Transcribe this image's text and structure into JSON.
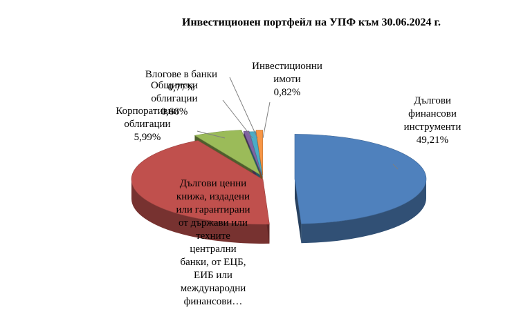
{
  "chart_data": {
    "type": "pie",
    "title": "Инвестиционен портфейл на УПФ към 30.06.2024 г.",
    "slices": [
      {
        "label": "Дългови финансови инструменти",
        "value": 49.21,
        "display": "49,21%",
        "color": "#4f81bd"
      },
      {
        "label": "Дългови ценни книжа, издадени или гарантирани от държави или техните централни банки, от ЕЦБ, ЕИБ или международни финансови…",
        "value": 42.55,
        "display": "",
        "color": "#c0504d"
      },
      {
        "label": "Корпоративни облигации",
        "value": 5.99,
        "display": "5,99%",
        "color": "#9bbb59"
      },
      {
        "label": "Общински облигации",
        "value": 0.66,
        "display": "0,66%",
        "color": "#8064a2"
      },
      {
        "label": "Влогове в банки",
        "value": 0.77,
        "display": "0,77%",
        "color": "#4bacc6"
      },
      {
        "label": "Инвестиционни имоти",
        "value": 0.82,
        "display": "0,82%",
        "color": "#f79646"
      }
    ]
  }
}
